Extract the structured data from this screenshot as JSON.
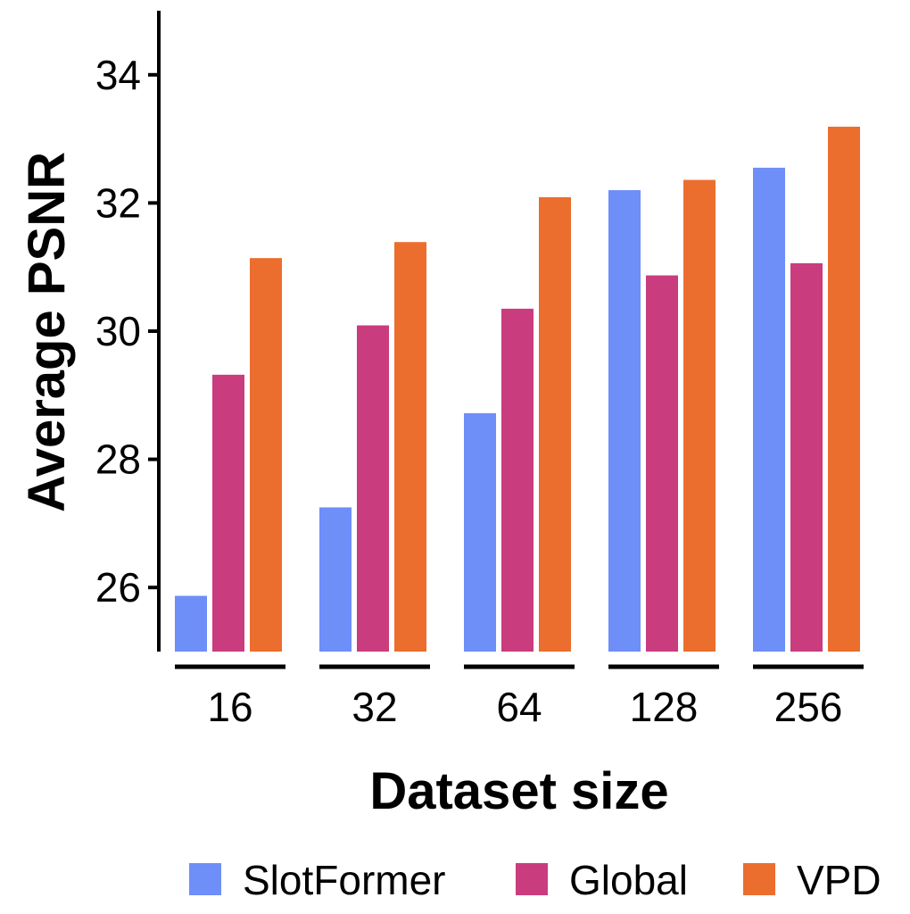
{
  "chart_data": {
    "type": "bar",
    "title": "",
    "xlabel": "Dataset size",
    "ylabel": "Average PSNR",
    "categories": [
      "16",
      "32",
      "64",
      "128",
      "256"
    ],
    "series": [
      {
        "name": "SlotFormer",
        "color": "#6e8ef8",
        "values": [
          25.87,
          27.25,
          28.72,
          32.2,
          32.55
        ]
      },
      {
        "name": "Global",
        "color": "#c93c7e",
        "values": [
          29.32,
          30.09,
          30.35,
          30.87,
          31.06
        ]
      },
      {
        "name": "VPD",
        "color": "#eb6e2e",
        "values": [
          31.14,
          31.39,
          32.09,
          32.36,
          33.19
        ]
      }
    ],
    "ylim": [
      25.0,
      35.0
    ],
    "yticks": [
      26,
      28,
      30,
      32,
      34
    ],
    "grid": false,
    "legend_position": "bottom"
  }
}
